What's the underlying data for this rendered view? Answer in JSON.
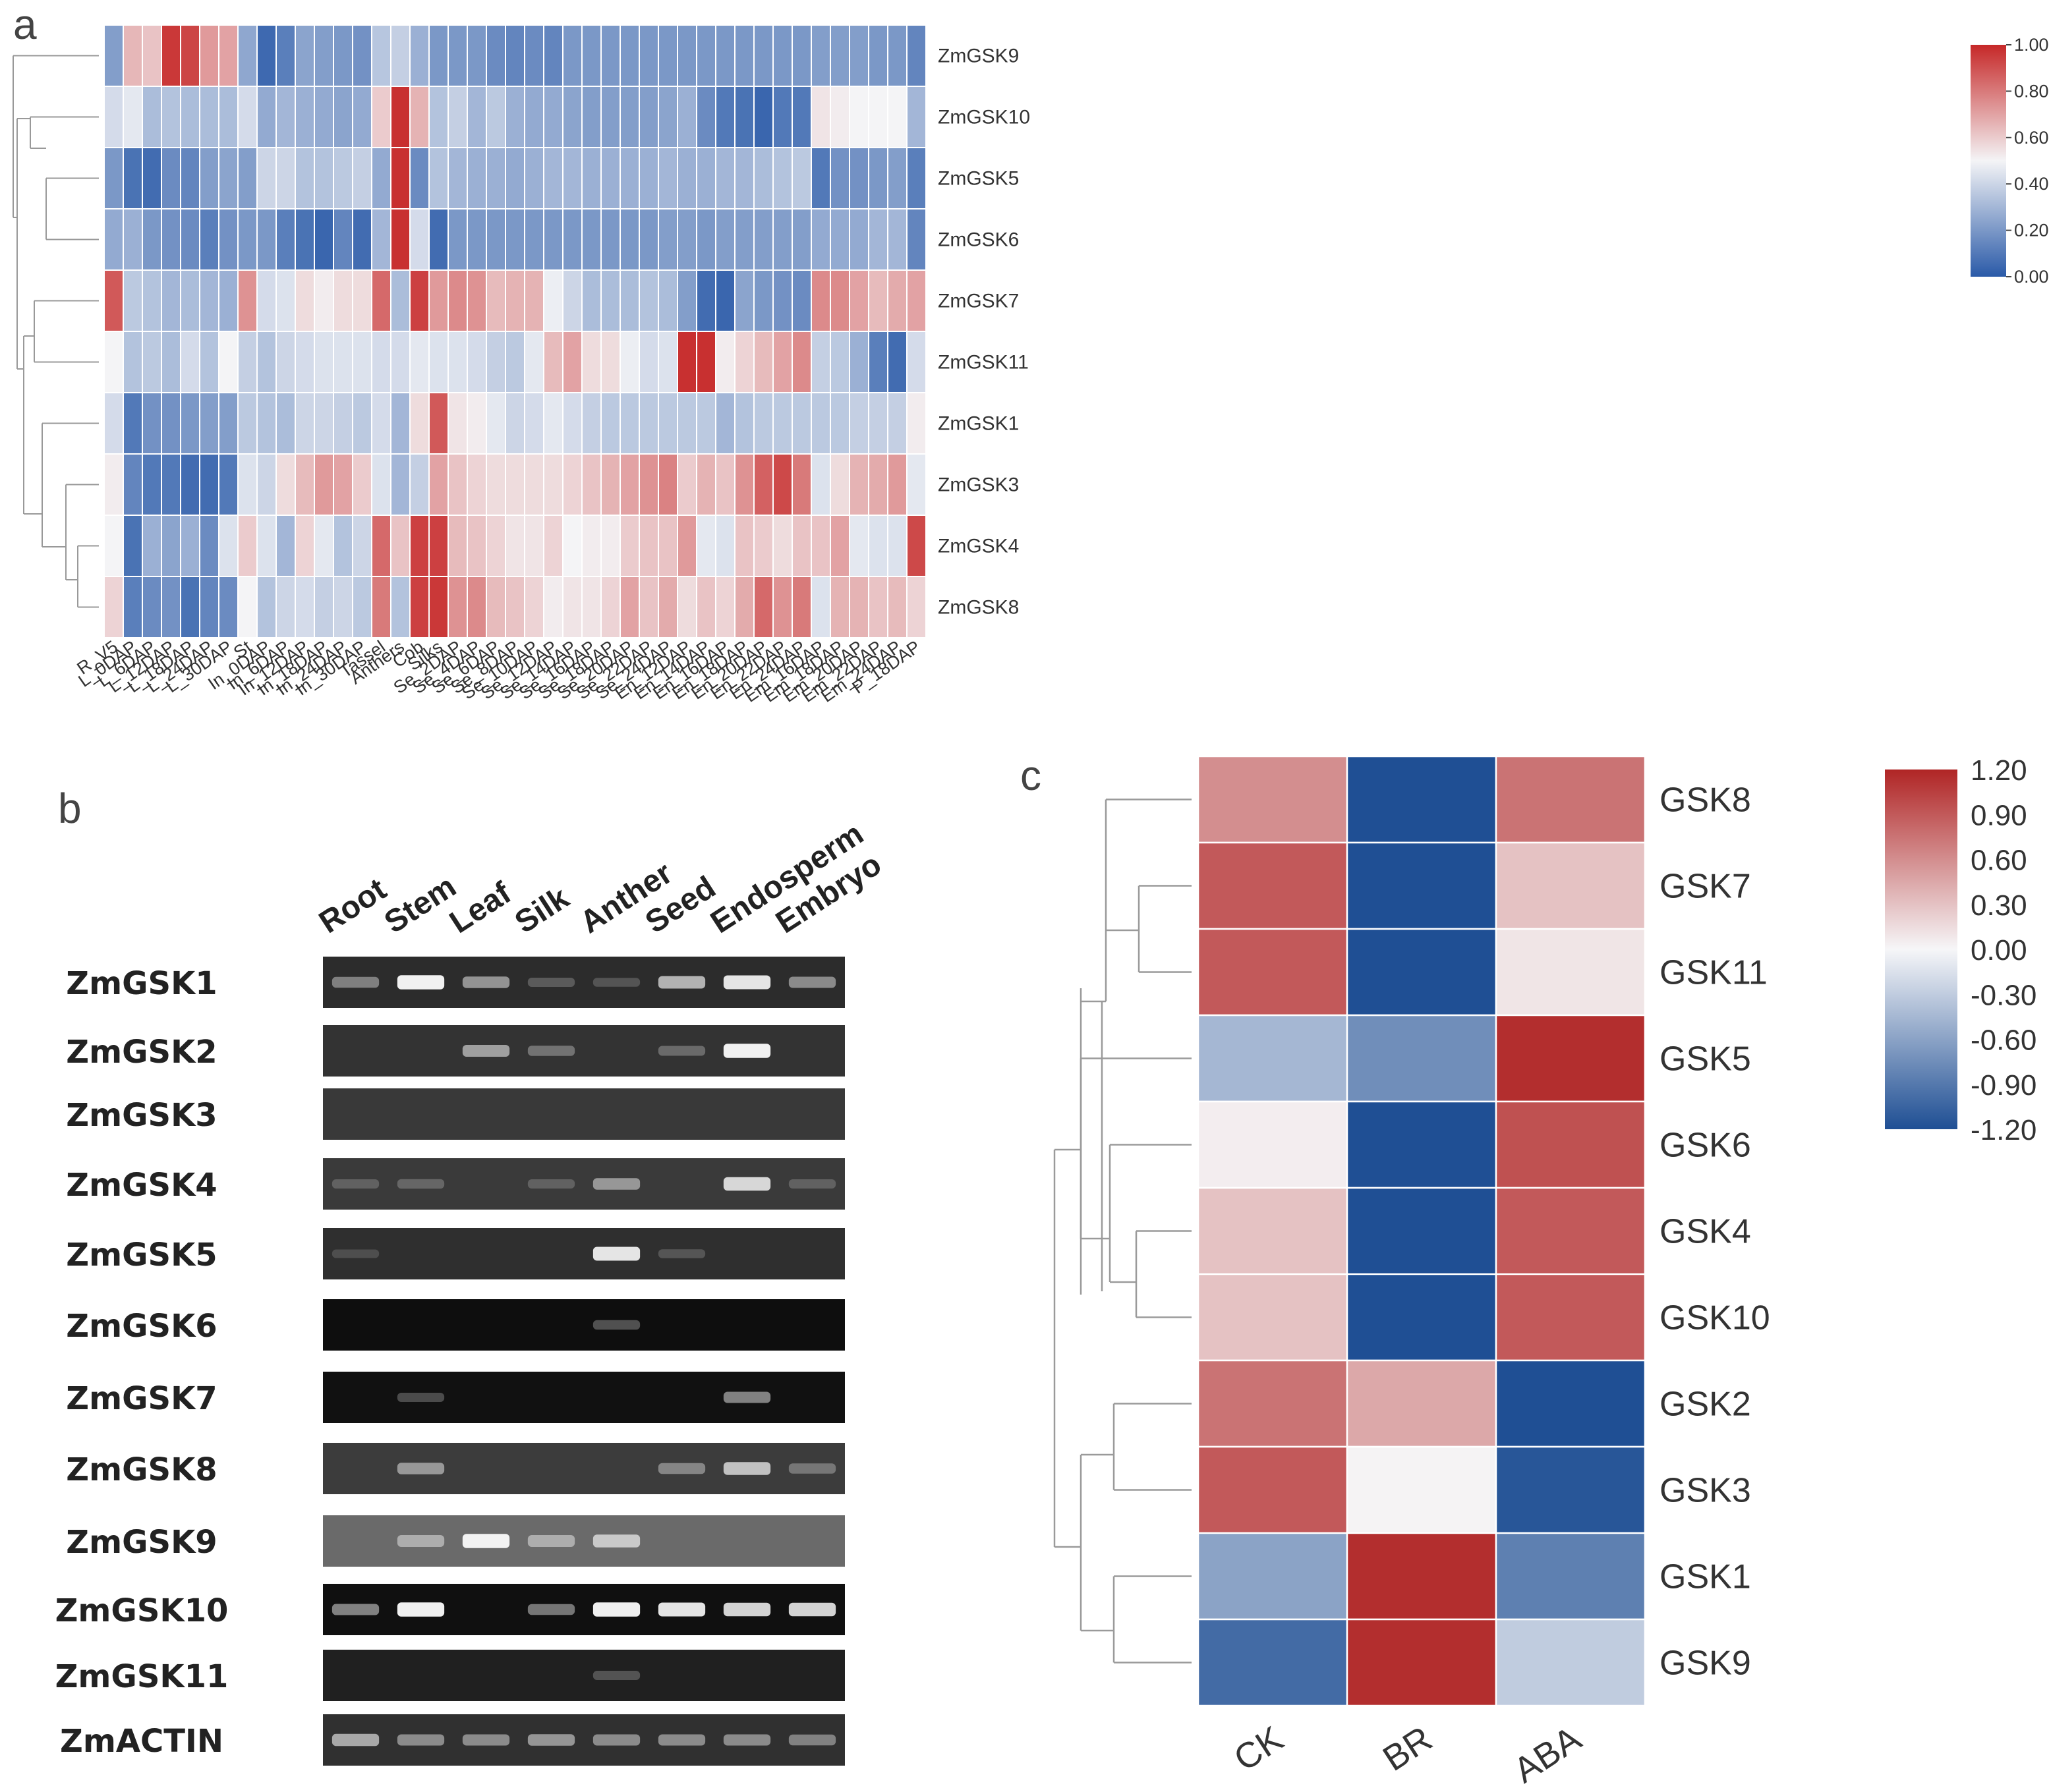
{
  "panel_labels": {
    "a": "a",
    "b": "b",
    "c": "c"
  },
  "colors": {
    "low": "#2a5aa8",
    "mid": "#f4f4f6",
    "high": "#c62828"
  },
  "chart_data": [
    {
      "type": "heatmap",
      "panel": "a",
      "title": "",
      "columns": [
        "R_V5",
        "L_0DAP",
        "L_6DAP",
        "L_12DAP",
        "L_18DAP",
        "L_24DAP",
        "L_30DAP",
        "St",
        "In_0DAP",
        "In_6DAP",
        "In_12DAP",
        "In_18DAP",
        "In_24DAP",
        "In_30DAP",
        "Tassel",
        "Anthers",
        "Cob",
        "Silks",
        "Se_2DAP",
        "Se_4DAP",
        "Se_6DAP",
        "Se_8DAP",
        "Se_10DAP",
        "Se_12DAP",
        "Se_14DAP",
        "Se_16DAP",
        "Se_18DAP",
        "Se_20DAP",
        "Se_22DAP",
        "Se_24DAP",
        "En_12DAP",
        "En_14DAP",
        "En_16DAP",
        "En_18DAP",
        "En_20DAP",
        "En_22DAP",
        "En_24DAP",
        "Em_16DAP",
        "Em_18DAP",
        "Em_20DAP",
        "Em_22DAP",
        "Em_24DAP",
        "P_18DAP"
      ],
      "rows": [
        "ZmGSK9",
        "ZmGSK10",
        "ZmGSK5",
        "ZmGSK6",
        "ZmGSK7",
        "ZmGSK11",
        "ZmGSK1",
        "ZmGSK3",
        "ZmGSK4",
        "ZmGSK8"
      ],
      "values": [
        [
          0.22,
          0.65,
          0.62,
          0.96,
          0.93,
          0.72,
          0.7,
          0.25,
          0.05,
          0.12,
          0.24,
          0.22,
          0.2,
          0.18,
          0.35,
          0.38,
          0.28,
          0.2,
          0.2,
          0.2,
          0.16,
          0.14,
          0.16,
          0.14,
          0.2,
          0.2,
          0.2,
          0.2,
          0.2,
          0.2,
          0.2,
          0.2,
          0.2,
          0.2,
          0.2,
          0.2,
          0.2,
          0.22,
          0.22,
          0.22,
          0.2,
          0.2,
          0.14
        ],
        [
          0.42,
          0.46,
          0.32,
          0.34,
          0.32,
          0.32,
          0.32,
          0.42,
          0.26,
          0.3,
          0.28,
          0.26,
          0.24,
          0.26,
          0.6,
          0.98,
          0.66,
          0.34,
          0.38,
          0.3,
          0.36,
          0.28,
          0.26,
          0.26,
          0.24,
          0.22,
          0.22,
          0.22,
          0.22,
          0.24,
          0.28,
          0.16,
          0.1,
          0.08,
          0.04,
          0.1,
          0.1,
          0.54,
          0.52,
          0.5,
          0.5,
          0.5,
          0.3
        ],
        [
          0.2,
          0.08,
          0.06,
          0.16,
          0.14,
          0.22,
          0.24,
          0.22,
          0.4,
          0.4,
          0.34,
          0.34,
          0.36,
          0.38,
          0.26,
          0.98,
          0.16,
          0.34,
          0.3,
          0.28,
          0.28,
          0.26,
          0.28,
          0.3,
          0.3,
          0.28,
          0.28,
          0.28,
          0.28,
          0.3,
          0.28,
          0.28,
          0.3,
          0.3,
          0.32,
          0.34,
          0.36,
          0.1,
          0.18,
          0.18,
          0.2,
          0.22,
          0.12
        ],
        [
          0.26,
          0.28,
          0.2,
          0.18,
          0.16,
          0.12,
          0.18,
          0.2,
          0.2,
          0.12,
          0.08,
          0.04,
          0.14,
          0.06,
          0.3,
          0.98,
          0.42,
          0.06,
          0.2,
          0.2,
          0.2,
          0.2,
          0.2,
          0.2,
          0.2,
          0.2,
          0.2,
          0.2,
          0.2,
          0.22,
          0.22,
          0.2,
          0.22,
          0.22,
          0.22,
          0.22,
          0.22,
          0.26,
          0.26,
          0.26,
          0.3,
          0.3,
          0.14
        ],
        [
          0.88,
          0.36,
          0.34,
          0.3,
          0.32,
          0.3,
          0.28,
          0.74,
          0.42,
          0.44,
          0.56,
          0.52,
          0.56,
          0.56,
          0.84,
          0.32,
          0.94,
          0.72,
          0.76,
          0.74,
          0.64,
          0.66,
          0.66,
          0.48,
          0.4,
          0.32,
          0.32,
          0.32,
          0.34,
          0.32,
          0.22,
          0.06,
          0.04,
          0.24,
          0.2,
          0.18,
          0.16,
          0.76,
          0.76,
          0.7,
          0.64,
          0.68,
          0.7
        ],
        [
          0.5,
          0.34,
          0.36,
          0.32,
          0.42,
          0.34,
          0.5,
          0.38,
          0.34,
          0.4,
          0.42,
          0.44,
          0.44,
          0.44,
          0.42,
          0.42,
          0.46,
          0.44,
          0.44,
          0.42,
          0.38,
          0.36,
          0.46,
          0.64,
          0.7,
          0.56,
          0.56,
          0.48,
          0.42,
          0.44,
          0.98,
          0.98,
          0.52,
          0.58,
          0.64,
          0.7,
          0.76,
          0.38,
          0.36,
          0.28,
          0.12,
          0.06,
          0.42
        ],
        [
          0.42,
          0.1,
          0.18,
          0.18,
          0.2,
          0.22,
          0.22,
          0.36,
          0.34,
          0.32,
          0.4,
          0.4,
          0.38,
          0.36,
          0.42,
          0.3,
          0.56,
          0.88,
          0.54,
          0.52,
          0.46,
          0.4,
          0.42,
          0.46,
          0.42,
          0.38,
          0.36,
          0.36,
          0.36,
          0.36,
          0.36,
          0.36,
          0.3,
          0.34,
          0.36,
          0.36,
          0.36,
          0.36,
          0.36,
          0.38,
          0.38,
          0.38,
          0.52
        ],
        [
          0.52,
          0.14,
          0.1,
          0.1,
          0.06,
          0.06,
          0.1,
          0.44,
          0.4,
          0.56,
          0.64,
          0.72,
          0.7,
          0.6,
          0.44,
          0.3,
          0.38,
          0.7,
          0.62,
          0.58,
          0.56,
          0.56,
          0.56,
          0.56,
          0.58,
          0.62,
          0.66,
          0.7,
          0.74,
          0.78,
          0.6,
          0.66,
          0.62,
          0.74,
          0.86,
          0.92,
          0.8,
          0.44,
          0.56,
          0.66,
          0.68,
          0.72,
          0.46
        ],
        [
          0.5,
          0.08,
          0.28,
          0.24,
          0.28,
          0.16,
          0.44,
          0.6,
          0.44,
          0.3,
          0.58,
          0.46,
          0.34,
          0.4,
          0.84,
          0.62,
          0.94,
          0.94,
          0.64,
          0.62,
          0.58,
          0.54,
          0.54,
          0.58,
          0.5,
          0.52,
          0.52,
          0.6,
          0.62,
          0.62,
          0.72,
          0.46,
          0.44,
          0.62,
          0.6,
          0.56,
          0.62,
          0.62,
          0.7,
          0.46,
          0.44,
          0.44,
          0.92
        ],
        [
          0.58,
          0.12,
          0.16,
          0.18,
          0.08,
          0.14,
          0.16,
          0.5,
          0.34,
          0.4,
          0.42,
          0.38,
          0.4,
          0.36,
          0.8,
          0.34,
          0.94,
          0.96,
          0.74,
          0.76,
          0.64,
          0.62,
          0.58,
          0.52,
          0.54,
          0.54,
          0.58,
          0.7,
          0.62,
          0.68,
          0.56,
          0.62,
          0.58,
          0.68,
          0.84,
          0.74,
          0.8,
          0.44,
          0.66,
          0.66,
          0.62,
          0.64,
          0.58
        ]
      ],
      "colorbar": {
        "ticks": [
          "1.00",
          "0.80",
          "0.60",
          "0.40",
          "0.20",
          "0.00"
        ],
        "range": [
          0,
          1
        ]
      }
    },
    {
      "type": "heatmap",
      "panel": "c",
      "title": "",
      "columns": [
        "CK",
        "BR",
        "ABA"
      ],
      "rows": [
        "GSK8",
        "GSK7",
        "GSK11",
        "GSK5",
        "GSK6",
        "GSK4",
        "GSK10",
        "GSK2",
        "GSK3",
        "GSK1",
        "GSK9"
      ],
      "values": [
        [
          0.6,
          -1.2,
          0.75
        ],
        [
          0.9,
          -1.2,
          0.3
        ],
        [
          0.9,
          -1.2,
          0.1
        ],
        [
          -0.45,
          -0.75,
          1.15
        ],
        [
          0.05,
          -1.2,
          0.95
        ],
        [
          0.3,
          -1.2,
          0.9
        ],
        [
          0.3,
          -1.2,
          0.9
        ],
        [
          0.75,
          0.45,
          -1.2
        ],
        [
          0.9,
          0.02,
          -1.15
        ],
        [
          -0.6,
          1.15,
          -0.85
        ],
        [
          -1.0,
          1.15,
          -0.3
        ]
      ],
      "colorbar": {
        "ticks": [
          "1.20",
          "0.90",
          "0.60",
          "0.30",
          "0.00",
          "-0.30",
          "-0.60",
          "-0.90",
          "-1.20"
        ],
        "range": [
          -1.2,
          1.2
        ]
      }
    },
    {
      "type": "table",
      "panel": "b",
      "title": "",
      "lanes": [
        "Root",
        "Stem",
        "Leaf",
        "Silk",
        "Anther",
        "Seed",
        "Endosperm",
        "Embryo"
      ],
      "genes": [
        "ZmGSK1",
        "ZmGSK2",
        "ZmGSK3",
        "ZmGSK4",
        "ZmGSK5",
        "ZmGSK6",
        "ZmGSK7",
        "ZmGSK8",
        "ZmGSK9",
        "ZmGSK10",
        "ZmGSK11",
        "ZmACTIN"
      ],
      "band_intensity": [
        [
          0.45,
          0.95,
          0.55,
          0.2,
          0.15,
          0.7,
          0.9,
          0.5
        ],
        [
          0.0,
          0.0,
          0.6,
          0.35,
          0.0,
          0.3,
          0.95,
          0.0
        ],
        [
          0.0,
          0.0,
          0.0,
          0.0,
          0.0,
          0.0,
          0.0,
          0.0
        ],
        [
          0.2,
          0.25,
          0.0,
          0.2,
          0.55,
          0.0,
          0.85,
          0.2
        ],
        [
          0.1,
          0.0,
          0.0,
          0.0,
          0.9,
          0.15,
          0.0,
          0.0
        ],
        [
          0.0,
          0.0,
          0.0,
          0.0,
          0.25,
          0.0,
          0.0,
          0.0
        ],
        [
          0.0,
          0.2,
          0.0,
          0.0,
          0.0,
          0.0,
          0.5,
          0.0
        ],
        [
          0.0,
          0.55,
          0.0,
          0.0,
          0.0,
          0.45,
          0.75,
          0.35
        ],
        [
          0.0,
          0.6,
          0.95,
          0.6,
          0.75,
          0.0,
          0.0,
          0.0
        ],
        [
          0.5,
          0.95,
          0.0,
          0.45,
          0.95,
          0.9,
          0.85,
          0.85
        ],
        [
          0.0,
          0.0,
          0.0,
          0.0,
          0.2,
          0.0,
          0.0,
          0.0
        ],
        [
          0.65,
          0.5,
          0.5,
          0.55,
          0.5,
          0.5,
          0.5,
          0.45
        ]
      ],
      "gel_backgrounds": [
        "#2c2c2c",
        "#333333",
        "#393939",
        "#3a3a3a",
        "#2f2f2f",
        "#0e0e0e",
        "#111111",
        "#3c3c3c",
        "#6a6a6a",
        "#101010",
        "#202020",
        "#303030"
      ]
    }
  ]
}
